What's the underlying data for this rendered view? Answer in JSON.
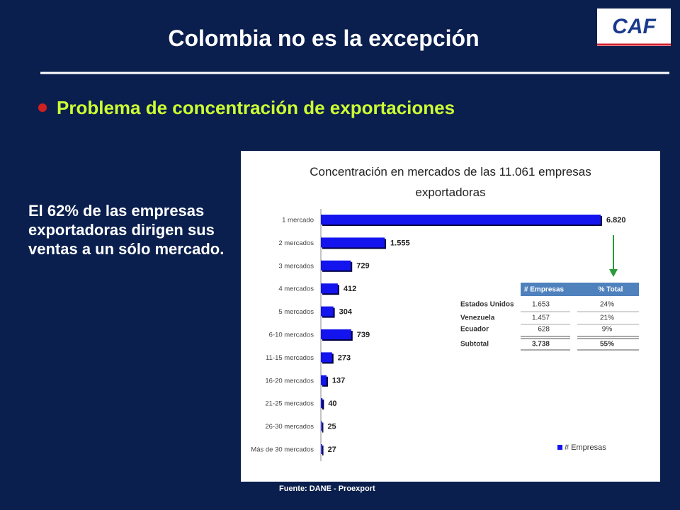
{
  "slide": {
    "title": "Colombia no es la excepción",
    "logo": "CAF",
    "bullet": "Problema de concentración de exportaciones",
    "body": "El 62% de las empresas exportadoras dirigen sus ventas a un sólo mercado.",
    "source": "Fuente: DANE - Proexport"
  },
  "chart_data": {
    "type": "hbar",
    "title": "Concentración en mercados de las 11.061 empresas exportadoras",
    "categories": [
      "1 mercado",
      "2 mercados",
      "3 mercados",
      "4 mercados",
      "5 mercados",
      "6-10 mercados",
      "11-15 mercados",
      "16-20 mercados",
      "21-25 mercados",
      "26-30 mercados",
      "Más de 30 mercados"
    ],
    "series": [
      {
        "name": "# Empresas",
        "color": "#1414ee",
        "values": [
          6820,
          1555,
          729,
          412,
          304,
          739,
          273,
          137,
          40,
          25,
          27
        ],
        "value_labels": [
          "6.820",
          "1.555",
          "729",
          "412",
          "304",
          "739",
          "273",
          "137",
          "40",
          "25",
          "27"
        ]
      }
    ]
  },
  "table": {
    "header": [
      "# Empresas",
      "% Total"
    ],
    "rows": [
      [
        "Estados Unidos",
        "1.653",
        "24%"
      ],
      [
        "Venezuela",
        "1.457",
        "21%"
      ],
      [
        "Ecuador",
        "628",
        "9%"
      ],
      [
        "Subtotal",
        "3.738",
        "55%"
      ]
    ]
  }
}
